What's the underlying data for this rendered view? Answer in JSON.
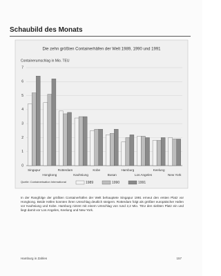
{
  "header": {
    "title": "Schaubild des Monats"
  },
  "chart_data": {
    "type": "bar",
    "title": "Die zehn größten Containerhäfen der Welt 1989, 1990 und 1991",
    "y_label": "Containerumschlag in Mio. TEU",
    "categories": [
      "Singapur",
      "Hongkong",
      "Rotterdam",
      "Kaohsiung",
      "Kobe",
      "Busan",
      "Hamburg",
      "Los Angeles",
      "Keelung",
      "New York"
    ],
    "series": [
      {
        "name": "1989",
        "color": "#f2f2f2",
        "values": [
          4.4,
          4.5,
          3.9,
          3.4,
          2.5,
          2.2,
          1.7,
          2.1,
          1.8,
          2.0
        ]
      },
      {
        "name": "1990",
        "color": "#bdbdbd",
        "values": [
          5.2,
          5.1,
          3.7,
          3.5,
          2.6,
          2.3,
          2.0,
          2.1,
          1.8,
          1.9
        ]
      },
      {
        "name": "1991",
        "color": "#8a8a8a",
        "values": [
          6.4,
          6.2,
          3.8,
          3.5,
          2.6,
          2.6,
          2.2,
          2.0,
          2.0,
          1.9
        ]
      }
    ],
    "ylim": [
      0,
      7
    ],
    "yticks": [
      0,
      1,
      2,
      3,
      4,
      5,
      6,
      7
    ],
    "grid": true,
    "legend": "bottom",
    "source": "Quelle: Containerisation International"
  },
  "body": {
    "text": "In der Rangfolge der größten Containerhäfen der Welt behauptete Singapur 1991 erneut den ersten Platz vor Hongkong. Beide Häfen konnten ihren Umschlag deutlich steigern. Rotterdam folgt als größter europäischer Hafen vor Kaohsiung und Kobe. Hamburg nimmt mit einem Umschlag von rund 2,2 Mio. TEU den siebten Platz ein und liegt damit vor Los Angeles, Keelung und New York."
  },
  "footer": {
    "left": "Hamburg in Zahlen",
    "page": "157"
  }
}
